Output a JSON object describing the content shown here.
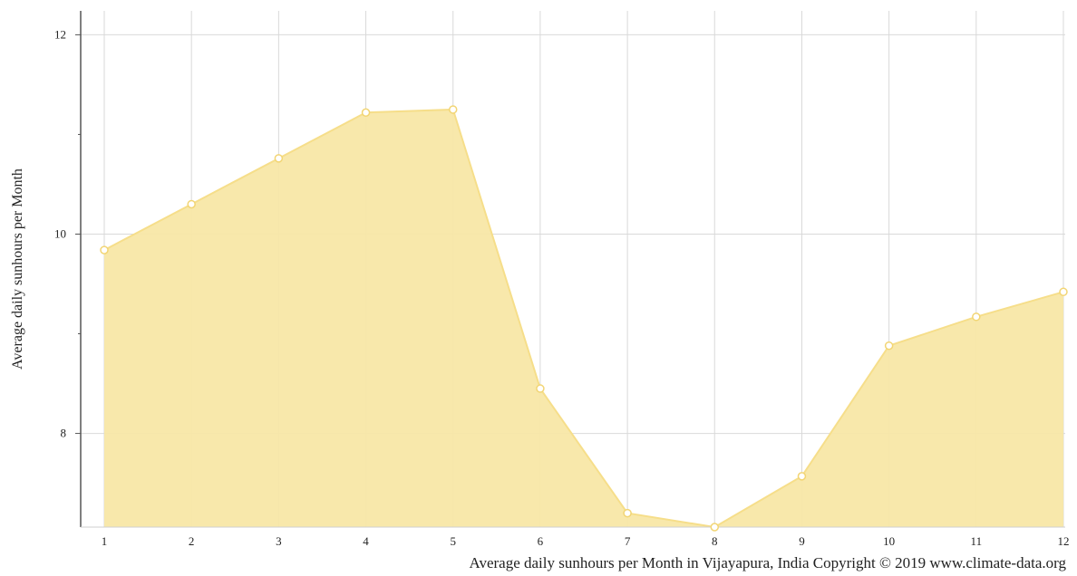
{
  "chart_data": {
    "type": "area",
    "title": "",
    "xlabel": "Average daily sunhours per Month in Vijayapura, India Copyright © 2019 www.climate-data.org",
    "ylabel": "Average daily sunhours per Month",
    "x": [
      1,
      2,
      3,
      4,
      5,
      6,
      7,
      8,
      9,
      10,
      11,
      12
    ],
    "x_tick_labels": [
      "1",
      "2",
      "3",
      "4",
      "5",
      "6",
      "7",
      "8",
      "9",
      "10",
      "11",
      "12"
    ],
    "y_ticks": [
      8,
      10,
      12
    ],
    "y_tick_labels": [
      "8",
      "10",
      "12"
    ],
    "ylim": [
      7.06,
      12.24
    ],
    "xlim": [
      1,
      12
    ],
    "grid": true,
    "series": [
      {
        "values": [
          9.84,
          10.3,
          10.76,
          11.22,
          11.25,
          8.45,
          7.2,
          7.06,
          7.57,
          8.88,
          9.17,
          9.42
        ],
        "fill_color": "#f8e7a6",
        "line_color": "#f6de8a",
        "marker_color": "#ffffff"
      }
    ]
  }
}
